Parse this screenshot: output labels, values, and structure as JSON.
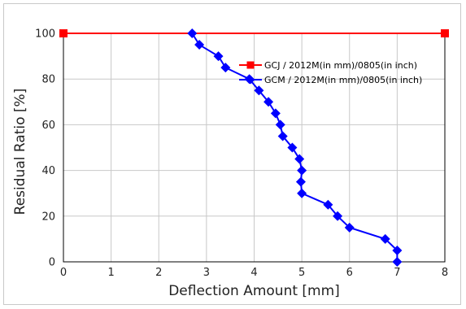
{
  "chart_data": {
    "type": "line",
    "title": "",
    "xlabel": "Deflection Amount [mm]",
    "ylabel": "Residual Ratio  [%]",
    "xlim": [
      0,
      8
    ],
    "ylim": [
      0,
      100
    ],
    "x_ticks": [
      "0",
      "1",
      "2",
      "3",
      "4",
      "5",
      "6",
      "7",
      "8"
    ],
    "y_ticks": [
      "0",
      "20",
      "40",
      "60",
      "80",
      "100"
    ],
    "grid": true,
    "legend_position": "top-right",
    "series": [
      {
        "name": "GCJ / 2012M(in mm)/0805(in inch)",
        "color": "#ff0000",
        "marker": "square",
        "points": [
          [
            0,
            100
          ],
          [
            8,
            100
          ]
        ]
      },
      {
        "name": "GCM / 2012M(in mm)/0805(in inch)",
        "color": "#0000ff",
        "marker": "diamond",
        "points": [
          [
            2.7,
            100
          ],
          [
            2.85,
            95
          ],
          [
            3.25,
            90
          ],
          [
            3.4,
            85
          ],
          [
            3.9,
            80
          ],
          [
            4.1,
            75
          ],
          [
            4.3,
            70
          ],
          [
            4.45,
            65
          ],
          [
            4.55,
            60
          ],
          [
            4.6,
            55
          ],
          [
            4.8,
            50
          ],
          [
            4.95,
            45
          ],
          [
            5.0,
            40
          ],
          [
            4.98,
            35
          ],
          [
            5.0,
            30
          ],
          [
            5.55,
            25
          ],
          [
            5.75,
            20
          ],
          [
            6.0,
            15
          ],
          [
            6.75,
            10
          ],
          [
            7.0,
            5
          ],
          [
            7.0,
            0
          ]
        ]
      }
    ]
  }
}
